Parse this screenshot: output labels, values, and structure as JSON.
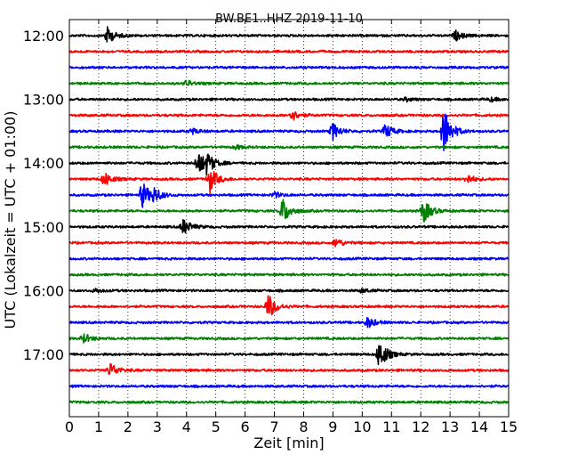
{
  "chart_data": {
    "type": "line",
    "title": "BW.BE1..HHZ 2019-11-10",
    "xlabel": "Zeit  [min]",
    "ylabel": "UTC (Lokalzeit = UTC + 01:00)",
    "xlim": [
      0,
      15
    ],
    "x_ticks": [
      "0",
      "1",
      "2",
      "3",
      "4",
      "5",
      "6",
      "7",
      "8",
      "9",
      "10",
      "11",
      "12",
      "13",
      "14",
      "15"
    ],
    "y_ticks": [
      "12:00",
      "13:00",
      "14:00",
      "15:00",
      "16:00",
      "17:00"
    ],
    "vertical_grid": "dotted",
    "trace_colors": [
      "#000000",
      "#ff0000",
      "#0000ff",
      "#008000"
    ],
    "rows": [
      {
        "start": "12:00",
        "events": [
          {
            "t": 1.3,
            "amp": 9
          },
          {
            "t": 13.2,
            "amp": 5
          }
        ]
      },
      {
        "start": "12:15",
        "events": []
      },
      {
        "start": "12:30",
        "events": []
      },
      {
        "start": "12:45",
        "events": [
          {
            "t": 4.0,
            "amp": 3
          }
        ]
      },
      {
        "start": "13:00",
        "events": [
          {
            "t": 11.5,
            "amp": 2
          },
          {
            "t": 14.4,
            "amp": 2
          }
        ]
      },
      {
        "start": "13:15",
        "events": [
          {
            "t": 7.6,
            "amp": 6
          }
        ]
      },
      {
        "start": "13:30",
        "events": [
          {
            "t": 4.2,
            "amp": 3
          },
          {
            "t": 9.0,
            "amp": 9
          },
          {
            "t": 10.8,
            "amp": 8
          },
          {
            "t": 12.8,
            "amp": 26
          }
        ]
      },
      {
        "start": "13:45",
        "events": [
          {
            "t": 5.7,
            "amp": 2
          }
        ]
      },
      {
        "start": "14:00",
        "events": [
          {
            "t": 4.4,
            "amp": 13
          },
          {
            "t": 4.7,
            "amp": 10
          }
        ]
      },
      {
        "start": "14:15",
        "events": [
          {
            "t": 1.2,
            "amp": 8
          },
          {
            "t": 4.8,
            "amp": 14
          },
          {
            "t": 13.6,
            "amp": 5
          }
        ]
      },
      {
        "start": "14:30",
        "events": [
          {
            "t": 2.5,
            "amp": 14
          },
          {
            "t": 2.9,
            "amp": 7
          },
          {
            "t": 7.0,
            "amp": 3
          }
        ]
      },
      {
        "start": "14:45",
        "events": [
          {
            "t": 7.3,
            "amp": 14
          },
          {
            "t": 12.1,
            "amp": 13
          }
        ]
      },
      {
        "start": "15:00",
        "events": [
          {
            "t": 3.9,
            "amp": 9
          }
        ]
      },
      {
        "start": "15:15",
        "events": [
          {
            "t": 9.1,
            "amp": 5
          }
        ]
      },
      {
        "start": "15:30",
        "events": []
      },
      {
        "start": "15:45",
        "events": []
      },
      {
        "start": "16:00",
        "events": [
          {
            "t": 0.9,
            "amp": 2
          },
          {
            "t": 10.0,
            "amp": 2
          }
        ]
      },
      {
        "start": "16:15",
        "events": [
          {
            "t": 6.8,
            "amp": 14
          }
        ]
      },
      {
        "start": "16:30",
        "events": [
          {
            "t": 10.2,
            "amp": 6
          }
        ]
      },
      {
        "start": "16:45",
        "events": [
          {
            "t": 0.5,
            "amp": 5
          }
        ]
      },
      {
        "start": "17:00",
        "events": [
          {
            "t": 10.6,
            "amp": 17
          }
        ]
      },
      {
        "start": "17:15",
        "events": [
          {
            "t": 1.4,
            "amp": 8
          }
        ]
      },
      {
        "start": "17:30",
        "events": []
      },
      {
        "start": "17:45",
        "events": []
      }
    ]
  }
}
